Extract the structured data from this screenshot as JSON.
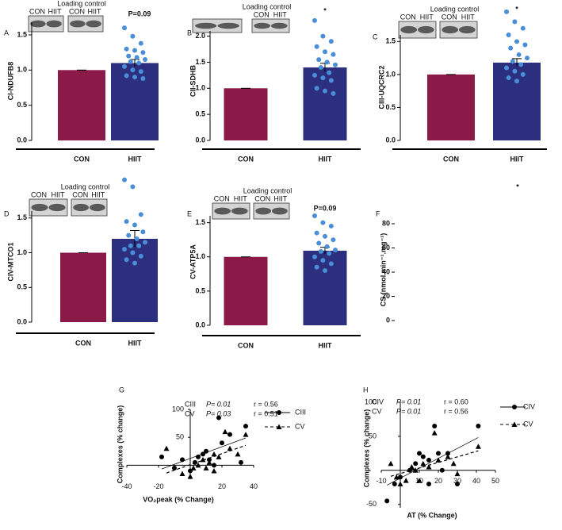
{
  "chart_data": [
    {
      "type": "bar",
      "panel": "A",
      "ylabel": "CI-NDUFB8",
      "categories": [
        "CON",
        "HIIT"
      ],
      "values": [
        1.0,
        1.1
      ],
      "errors": [
        0,
        0.05
      ],
      "colors": [
        "#8b1a48",
        "#2c2e7e"
      ],
      "points": [
        1.6,
        1.48,
        1.38,
        1.3,
        1.28,
        1.25,
        1.2,
        1.18,
        1.15,
        1.12,
        1.1,
        1.05,
        1.0,
        0.98,
        0.92,
        0.9,
        0.88
      ],
      "points_color": "#4a8ed8",
      "ylim": [
        0,
        1.68
      ],
      "yticks": [
        {
          "value": 0,
          "label": "0.0"
        },
        0.5,
        {
          "value": 1,
          "label": "1.0"
        },
        1.5
      ],
      "annotation": "P=0.09",
      "blot": {
        "lanes": [
          "CON",
          "HIIT"
        ],
        "control_title": "Loading control",
        "control_lanes": [
          "CON",
          "HIIT"
        ]
      }
    },
    {
      "type": "bar",
      "panel": "B",
      "ylabel": "CII-SDHB",
      "categories": [
        "CON",
        "HIIT"
      ],
      "values": [
        1.0,
        1.4
      ],
      "errors": [
        0,
        0.08
      ],
      "colors": [
        "#8b1a48",
        "#2c2e7e"
      ],
      "points": [
        2.3,
        2.0,
        1.9,
        1.8,
        1.7,
        1.65,
        1.55,
        1.5,
        1.45,
        1.4,
        1.3,
        1.25,
        1.2,
        1.15,
        1.0,
        0.95,
        0.9
      ],
      "points_color": "#4a8ed8",
      "ylim": [
        0,
        2.1
      ],
      "yticks": [
        {
          "value": 0,
          "label": "0.0"
        },
        0.5,
        {
          "value": 1,
          "label": "1.0"
        },
        1.5,
        {
          "value": 2,
          "label": "2.0"
        }
      ],
      "annotation": "*",
      "blot": {
        "control_title": "Loading control",
        "control_lanes": [
          "CON",
          "HIIT"
        ]
      }
    },
    {
      "type": "bar",
      "panel": "C",
      "ylabel": "CIII-UQCRC2",
      "categories": [
        "CON",
        "HIIT"
      ],
      "values": [
        1.0,
        1.18
      ],
      "errors": [
        0,
        0.06
      ],
      "colors": [
        "#8b1a48",
        "#2c2e7e"
      ],
      "points": [
        1.95,
        1.8,
        1.7,
        1.6,
        1.5,
        1.45,
        1.4,
        1.3,
        1.25,
        1.2,
        1.15,
        1.1,
        1.05,
        1.0,
        0.95,
        0.9
      ],
      "points_color": "#4a8ed8",
      "ylim": [
        0,
        1.6
      ],
      "yticks": [
        {
          "value": 0,
          "label": "0.0"
        },
        0.5,
        {
          "value": 1,
          "label": "1.0"
        },
        1.5
      ],
      "annotation": "*",
      "blot": {
        "lanes": [
          "CON",
          "HIIT"
        ],
        "control_title": "Loading control",
        "control_lanes": [
          "CON",
          "HIIT"
        ]
      }
    },
    {
      "type": "bar",
      "panel": "D",
      "ylabel": "CIV-MTCO1",
      "categories": [
        "CON",
        "HIIT"
      ],
      "values": [
        1.0,
        1.2
      ],
      "errors": [
        0,
        0.12
      ],
      "colors": [
        "#8b1a48",
        "#2c2e7e"
      ],
      "points": [
        2.05,
        1.95,
        1.55,
        1.45,
        1.4,
        1.3,
        1.25,
        1.2,
        1.15,
        1.1,
        1.1,
        1.05,
        1.0,
        0.95,
        0.9,
        0.85
      ],
      "points_color": "#4a8ed8",
      "ylim": [
        0,
        1.6
      ],
      "yticks": [
        {
          "value": 0,
          "label": "0.0"
        },
        0.5,
        {
          "value": 1,
          "label": "1.0"
        },
        1.5
      ],
      "blot": {
        "lanes": [
          "CON",
          "HIIT"
        ],
        "control_title": "Loading control",
        "control_lanes": [
          "CON",
          "HIIT"
        ]
      }
    },
    {
      "type": "bar",
      "panel": "E",
      "ylabel": "CV-ATP5A",
      "categories": [
        "CON",
        "HIIT"
      ],
      "values": [
        1.0,
        1.09
      ],
      "errors": [
        0,
        0.05
      ],
      "colors": [
        "#8b1a48",
        "#2c2e7e"
      ],
      "points": [
        1.6,
        1.5,
        1.45,
        1.35,
        1.3,
        1.25,
        1.2,
        1.15,
        1.1,
        1.08,
        1.05,
        1.0,
        0.95,
        0.9,
        0.85,
        0.8
      ],
      "points_color": "#4a8ed8",
      "ylim": [
        0,
        1.6
      ],
      "yticks": [
        {
          "value": 0,
          "label": "0.0"
        },
        0.5,
        {
          "value": 1,
          "label": "1.0"
        },
        1.5
      ],
      "annotation": "P=0.09",
      "blot": {
        "lanes": [
          "CON",
          "HIIT"
        ],
        "control_title": "Loading control",
        "control_lanes": [
          "CON",
          "HIIT"
        ]
      }
    },
    {
      "type": "bar",
      "panel": "F",
      "ylabel": "CS (nmol.min⁻¹.mg⁻¹)",
      "ylim": [
        0,
        80
      ],
      "yticks": [
        0,
        20,
        40,
        60,
        80
      ],
      "annotation": "*"
    },
    {
      "type": "scatter",
      "panel": "G",
      "xlabel": "VO₂peak (% Change)",
      "ylabel": "Complexes (% change)",
      "color": "#000000",
      "xlim": [
        -40,
        40
      ],
      "xticks": [
        -40,
        -20,
        20,
        40
      ],
      "ylim": [
        -25,
        100
      ],
      "yticks": [
        50,
        100
      ],
      "series": [
        {
          "name": "CIII",
          "marker": "circle",
          "line": "solid",
          "p": "P= 0.01",
          "r": "r = 0.56",
          "x": [
            -18,
            -10,
            -5,
            0,
            3,
            5,
            8,
            10,
            12,
            15,
            18,
            20,
            25,
            32,
            35
          ],
          "y": [
            15,
            -5,
            10,
            -10,
            5,
            15,
            20,
            25,
            10,
            0,
            85,
            40,
            55,
            5,
            70
          ]
        },
        {
          "name": "CV",
          "marker": "triangle",
          "line": "dashed",
          "p": "P= 0.03",
          "r": "r = 0.51",
          "x": [
            -15,
            -5,
            0,
            2,
            5,
            8,
            10,
            12,
            15,
            15,
            18,
            22,
            25,
            30,
            35
          ],
          "y": [
            30,
            -15,
            -20,
            -5,
            0,
            10,
            -5,
            5,
            20,
            -10,
            15,
            60,
            30,
            20,
            55
          ]
        }
      ]
    },
    {
      "type": "scatter",
      "panel": "H",
      "xlabel": "AT (% Change)",
      "ylabel": "Complexes (% change)",
      "color": "#000000",
      "xlim": [
        -10,
        50
      ],
      "xticks": [
        -10,
        10,
        20,
        30,
        40,
        50
      ],
      "ylim": [
        -55,
        100
      ],
      "yticks": [
        -50,
        50,
        100
      ],
      "series": [
        {
          "name": "CIV",
          "marker": "circle",
          "line": "solid",
          "p": "P= 0.01",
          "r": "r = 0.60",
          "x": [
            -7,
            -3,
            0,
            5,
            8,
            10,
            12,
            15,
            18,
            20,
            22,
            25,
            30,
            41,
            15
          ],
          "y": [
            -45,
            -20,
            -10,
            0,
            10,
            25,
            20,
            15,
            65,
            25,
            0,
            25,
            -20,
            65,
            -20
          ]
        },
        {
          "name": "CV",
          "marker": "triangle",
          "line": "dashed",
          "p": "P= 0.01",
          "r": "r = 0.56",
          "x": [
            -5,
            -2,
            0,
            3,
            6,
            8,
            10,
            12,
            15,
            18,
            20,
            25,
            28,
            30,
            41
          ],
          "y": [
            10,
            -10,
            -20,
            -15,
            5,
            0,
            -15,
            10,
            5,
            55,
            15,
            20,
            10,
            -5,
            35
          ]
        }
      ]
    }
  ]
}
